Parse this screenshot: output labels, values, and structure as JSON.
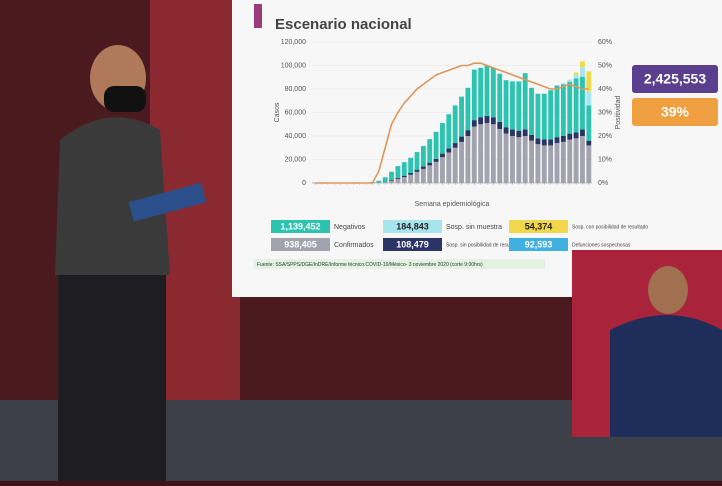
{
  "chart_data": {
    "type": "bar",
    "title": "Escenario nacional",
    "categories": [
      null,
      null,
      null,
      null,
      null,
      null,
      null,
      null,
      null,
      null,
      null,
      null,
      null,
      null,
      null,
      null,
      null,
      null,
      null,
      null,
      null,
      null,
      null,
      null,
      null,
      null,
      null,
      null,
      null,
      null,
      null,
      null,
      null,
      null,
      null,
      null,
      null,
      null,
      null,
      null,
      null,
      null,
      null,
      null
    ],
    "series": [
      {
        "name": "Confirmados",
        "color": "#a3a3b0",
        "total_label": "938,405",
        "values": [
          0,
          0,
          0,
          0,
          0,
          0,
          0,
          0,
          0,
          50,
          200,
          800,
          2000,
          3500,
          5000,
          7000,
          9500,
          12000,
          15000,
          18000,
          22000,
          26000,
          30000,
          35000,
          40000,
          48000,
          50000,
          51000,
          50000,
          46000,
          42000,
          40000,
          39000,
          40000,
          36000,
          33000,
          32000,
          32000,
          34000,
          35000,
          37000,
          38000,
          40000,
          32000
        ]
      },
      {
        "name": "Sosp. sin posibilidad de resultado",
        "color": "#2a3566",
        "total_label": "108,479",
        "values": [
          0,
          0,
          0,
          0,
          0,
          0,
          0,
          0,
          0,
          50,
          100,
          300,
          600,
          900,
          1200,
          1500,
          1800,
          2000,
          2300,
          2600,
          3000,
          3500,
          4000,
          4500,
          5000,
          5500,
          6000,
          6000,
          6000,
          6000,
          5500,
          5500,
          5500,
          5500,
          5000,
          5000,
          5000,
          5000,
          5000,
          5000,
          5000,
          5000,
          5500,
          4000
        ]
      },
      {
        "name": "Negativos",
        "color": "#2cc4b0",
        "total_label": "1,139,452",
        "values": [
          300,
          300,
          300,
          300,
          300,
          300,
          300,
          300,
          300,
          800,
          1600,
          3800,
          7000,
          10000,
          11500,
          13000,
          15000,
          17500,
          20000,
          23000,
          26000,
          29000,
          32000,
          34000,
          36000,
          43000,
          42000,
          43000,
          42000,
          41000,
          40000,
          41000,
          42000,
          48000,
          40000,
          38000,
          39000,
          42000,
          44000,
          44000,
          44000,
          46000,
          45000,
          30000
        ]
      },
      {
        "name": "Sosp. sin muestra",
        "color": "#a6e4ee",
        "total_label": "184,843",
        "values": [
          0,
          0,
          0,
          0,
          0,
          0,
          0,
          0,
          0,
          0,
          0,
          0,
          0,
          0,
          0,
          0,
          0,
          0,
          0,
          0,
          0,
          0,
          0,
          0,
          0,
          0,
          0,
          0,
          0,
          0,
          0,
          0,
          0,
          0,
          0,
          0,
          0,
          0,
          0,
          1000,
          2000,
          3000,
          8000,
          12000
        ]
      },
      {
        "name": "Sosp. con posibilidad de resultado",
        "color": "#f0d84a",
        "total_label": "54,374",
        "values": [
          0,
          0,
          0,
          0,
          0,
          0,
          0,
          0,
          0,
          0,
          0,
          0,
          0,
          0,
          0,
          0,
          0,
          0,
          0,
          0,
          0,
          0,
          0,
          0,
          0,
          0,
          0,
          0,
          0,
          0,
          0,
          0,
          0,
          0,
          0,
          0,
          0,
          0,
          0,
          0,
          0,
          2000,
          5000,
          17000
        ]
      }
    ],
    "line": {
      "axis": "y2",
      "color": "#e0955a",
      "values": [
        0,
        0,
        0,
        0,
        0,
        0,
        0,
        0,
        0,
        0,
        5,
        15,
        25,
        30,
        34,
        37,
        40,
        42,
        44,
        46,
        47,
        48,
        49,
        50,
        50,
        51,
        51,
        50,
        49,
        48,
        47,
        46,
        45,
        44,
        43,
        42,
        41,
        40,
        40,
        41,
        42,
        41,
        40,
        40
      ]
    },
    "ylim": [
      0,
      120000
    ],
    "yticks": [
      0,
      {
        "value": 20000,
        "label": "20,000"
      },
      {
        "value": 40000,
        "label": "40,000"
      },
      {
        "value": 60000,
        "label": "60,000"
      },
      {
        "value": 80000,
        "label": "80,000"
      },
      {
        "value": 100000,
        "label": "100,000"
      },
      {
        "value": 120000,
        "label": "120,000"
      }
    ],
    "y2lim": [
      0,
      60
    ],
    "y2ticks": [
      {
        "value": 0,
        "label": "0%"
      },
      {
        "value": 10,
        "label": "10%"
      },
      {
        "value": 20,
        "label": "20%"
      },
      {
        "value": 30,
        "label": "30%"
      },
      {
        "value": 40,
        "label": "40%"
      },
      {
        "value": 50,
        "label": "50%"
      },
      {
        "value": 60,
        "label": "60%"
      }
    ],
    "ylabel": "Casos",
    "y2label": "Positividad",
    "xlabel": "Semana epidemiológica",
    "grid": true,
    "extra_legend": {
      "name": "Defunciones sospechosas",
      "color": "#3fb0e0",
      "total_label": "92,593"
    },
    "highlights": [
      {
        "text": "2,425,553",
        "color": "#5a3f8f"
      },
      {
        "text": "39%",
        "color": "#f0a040"
      }
    ],
    "source": "Fuente: SSA/SPPS/DGE/InDRE/Informe técnico.COVID-19/México- 3 noviembre 2020 (corte 9:00hrs)"
  }
}
